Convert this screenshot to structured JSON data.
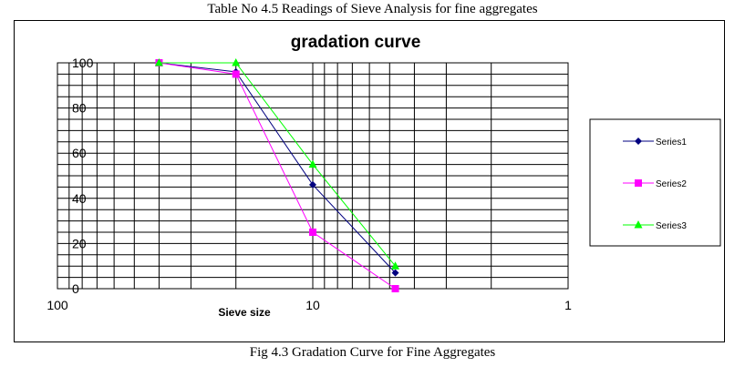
{
  "captions": {
    "top": "Table No 4.5 Readings of Sieve Analysis for fine aggregates",
    "bottom": "Fig 4.3 Gradation Curve for Fine Aggregates"
  },
  "chart_data": {
    "type": "line",
    "title": "gradation curve",
    "xlabel": "Sieve size",
    "ylabel": "",
    "x_scale": "log",
    "x_reversed": true,
    "xlim": [
      100,
      1
    ],
    "ylim": [
      0,
      100
    ],
    "x_ticks": [
      "100",
      "10",
      "1"
    ],
    "y_ticks": [
      "0",
      "20",
      "40",
      "60",
      "80",
      "100"
    ],
    "grid": true,
    "legend_position": "right",
    "x": [
      40,
      20,
      10,
      4.75
    ],
    "series": [
      {
        "name": "Series1",
        "color": "#000080",
        "marker": "diamond",
        "values": [
          100,
          96,
          46,
          7
        ]
      },
      {
        "name": "Series2",
        "color": "#ff00ff",
        "marker": "square",
        "values": [
          100,
          95,
          25,
          0
        ]
      },
      {
        "name": "Series3",
        "color": "#00ff00",
        "marker": "triangle",
        "values": [
          100,
          100,
          55,
          10
        ]
      }
    ]
  }
}
